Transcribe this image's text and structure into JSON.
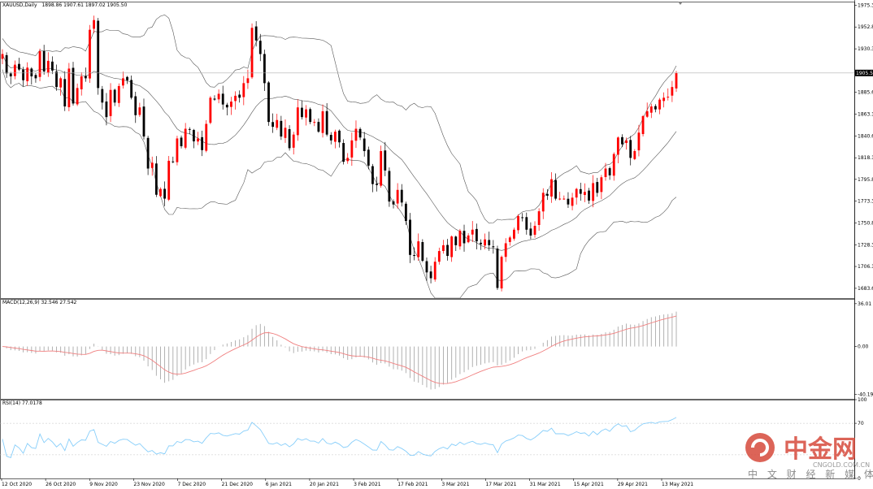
{
  "chart_data": [
    {
      "type": "candlestick",
      "title": "XAUUSD,Daily",
      "header": {
        "symbol": "XAUUSD,Daily",
        "ohlc": "1898.86 1907.61 1897.02 1905.50"
      },
      "price_axis": {
        "ticks": [
          "1975.35",
          "1952.85",
          "1930.35",
          "1905.50",
          "1885.60",
          "1863.10",
          "1840.60",
          "1818.10",
          "1795.85",
          "1773.35",
          "1750.85",
          "1728.35",
          "1706.10",
          "1683.60"
        ],
        "current_price": "1905.50",
        "ylim": [
          1673.5,
          1979
        ]
      },
      "x_tick_labels": [
        "12 Oct 2020",
        "26 Oct 2020",
        "9 Nov 2020",
        "23 Nov 2020",
        "7 Dec 2020",
        "21 Dec 2020",
        "6 Jan 2021",
        "20 Jan 2021",
        "3 Feb 2021",
        "17 Feb 2021",
        "3 Mar 2021",
        "17 Mar 2021",
        "31 Mar 2021",
        "15 Apr 2021",
        "29 Apr 2021",
        "13 May 2021"
      ],
      "up_color": "#ff0000",
      "down_color": "#000000",
      "closes": [
        1925,
        1905,
        1902,
        1914,
        1909,
        1898,
        1911,
        1902,
        1900,
        1928,
        1907,
        1918,
        1908,
        1891,
        1900,
        1871,
        1910,
        1874,
        1890,
        1902,
        1900,
        1950,
        1960,
        1890,
        1875,
        1860,
        1888,
        1875,
        1892,
        1900,
        1898,
        1880,
        1862,
        1870,
        1840,
        1807,
        1813,
        1780,
        1786,
        1776,
        1815,
        1814,
        1838,
        1830,
        1848,
        1847,
        1835,
        1838,
        1826,
        1853,
        1880,
        1878,
        1884,
        1873,
        1870,
        1876,
        1882,
        1880,
        1895,
        1900,
        1952,
        1939,
        1925,
        1895,
        1855,
        1850,
        1857,
        1840,
        1849,
        1828,
        1842,
        1870,
        1860,
        1868,
        1855,
        1855,
        1845,
        1866,
        1842,
        1836,
        1845,
        1834,
        1814,
        1818,
        1836,
        1848,
        1839,
        1825,
        1810,
        1791,
        1790,
        1825,
        1805,
        1773,
        1770,
        1785,
        1772,
        1753,
        1718,
        1717,
        1732,
        1712,
        1700,
        1694,
        1711,
        1722,
        1728,
        1717,
        1737,
        1728,
        1743,
        1730,
        1738,
        1744,
        1732,
        1729,
        1734,
        1728,
        1726,
        1684,
        1716,
        1730,
        1736,
        1744,
        1758,
        1756,
        1744,
        1738,
        1748,
        1763,
        1782,
        1779,
        1796,
        1776,
        1776,
        1776,
        1770,
        1777,
        1786,
        1781,
        1783,
        1774,
        1792,
        1782,
        1798,
        1807,
        1800,
        1822,
        1839,
        1832,
        1836,
        1818,
        1825,
        1844,
        1861,
        1866,
        1871,
        1868,
        1878,
        1880,
        1881,
        1891,
        1905.5
      ],
      "macd": {
        "label": "MACD(12,26,9) 32.546 27.542",
        "ticks": [
          "36.01",
          "0.00",
          "-40.199"
        ],
        "ylim": [
          -44,
          40
        ],
        "line_color": "#f08080",
        "hist_color": "#a9a9a9"
      },
      "rsi": {
        "label": "RSI(14) 77.0178",
        "ticks": [
          "100",
          "70",
          "0"
        ],
        "ylim": [
          0,
          100
        ],
        "line_color": "#87cefa"
      }
    }
  ],
  "watermark": {
    "brand": "中金网",
    "site": "CNGOLD.COM.CN",
    "tagline": "中 文 财 经 新 媒 体"
  }
}
